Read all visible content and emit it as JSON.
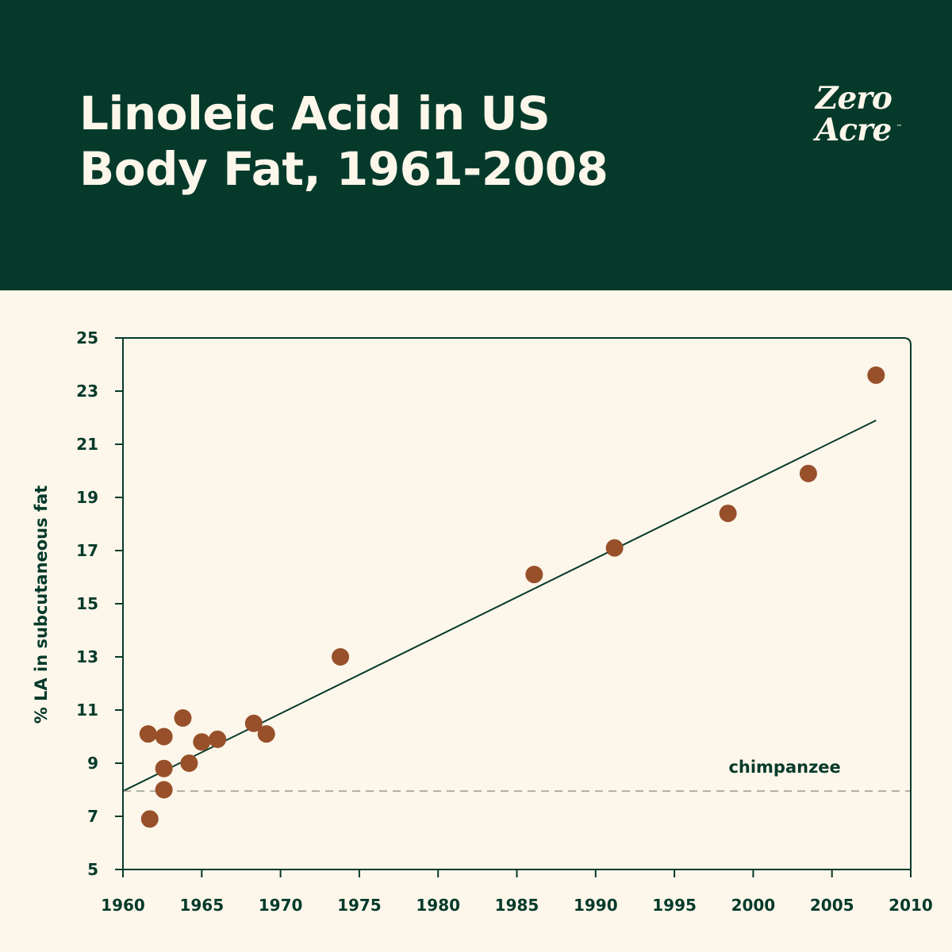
{
  "header": {
    "title_line1": "Linoleic Acid in US",
    "title_line2": "Body Fat, 1961-2008",
    "logo_line1": "Zero",
    "logo_line2": "Acre",
    "logo_tm": "™"
  },
  "colors": {
    "header_bg": "#053a2b",
    "page_bg": "#fdf6ea",
    "point": "#97502a",
    "axis": "#053a2b",
    "reference_line": "#9a9a90"
  },
  "chart_data": {
    "type": "scatter",
    "title": "Linoleic Acid in US Body Fat, 1961-2008",
    "xlabel": "",
    "ylabel": "% LA in subcutaneous fat",
    "xlim": [
      1960,
      2010
    ],
    "ylim": [
      5,
      25
    ],
    "x_ticks": [
      1960,
      1965,
      1970,
      1975,
      1980,
      1985,
      1990,
      1995,
      2000,
      2005,
      2010
    ],
    "y_ticks": [
      5,
      7,
      9,
      11,
      13,
      15,
      17,
      19,
      21,
      23,
      25
    ],
    "grid": false,
    "points": [
      {
        "x": 1961.6,
        "y": 10.1
      },
      {
        "x": 1961.7,
        "y": 6.9
      },
      {
        "x": 1962.6,
        "y": 10.0
      },
      {
        "x": 1962.6,
        "y": 8.8
      },
      {
        "x": 1962.6,
        "y": 8.0
      },
      {
        "x": 1963.8,
        "y": 10.7
      },
      {
        "x": 1964.2,
        "y": 9.0
      },
      {
        "x": 1965.0,
        "y": 9.8
      },
      {
        "x": 1966.0,
        "y": 9.9
      },
      {
        "x": 1968.3,
        "y": 10.5
      },
      {
        "x": 1969.1,
        "y": 10.1
      },
      {
        "x": 1973.8,
        "y": 13.0
      },
      {
        "x": 1986.1,
        "y": 16.1
      },
      {
        "x": 1991.2,
        "y": 17.1
      },
      {
        "x": 1998.4,
        "y": 18.4
      },
      {
        "x": 2003.5,
        "y": 19.9
      },
      {
        "x": 2007.8,
        "y": 23.6
      }
    ],
    "trend_line": {
      "x": [
        1960,
        2007.8
      ],
      "y": [
        7.95,
        21.9
      ]
    },
    "reference_line": {
      "y": 7.95,
      "label": "chimpanzee"
    }
  }
}
